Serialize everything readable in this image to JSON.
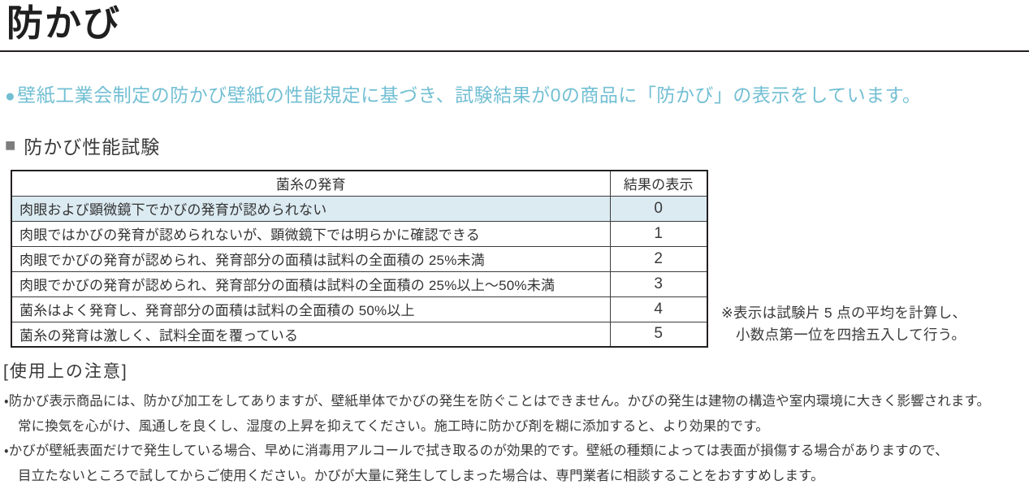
{
  "page": {
    "title": "防かび"
  },
  "intro": {
    "bullet": "●",
    "text": "壁紙工業会制定の防かび壁紙の性能規定に基づき、試験結果が0の商品に「防かび」の表示をしています。"
  },
  "section": {
    "marker": "■",
    "title": "防かび性能試験"
  },
  "table": {
    "headers": [
      "菌糸の発育",
      "結果の表示"
    ],
    "rows": [
      {
        "description": "肉眼および顕微鏡下でかびの発育が認められない",
        "result": "0"
      },
      {
        "description": "肉眼ではかびの発育が認められないが、顕微鏡下では明らかに確認できる",
        "result": "1"
      },
      {
        "description": "肉眼でかびの発育が認められ、発育部分の面積は試料の全面積の 25%未満",
        "result": "2"
      },
      {
        "description": "肉眼でかびの発育が認められ、発育部分の面積は試料の全面積の 25%以上～50%未満",
        "result": "3"
      },
      {
        "description": "菌糸はよく発育し、発育部分の面積は試料の全面積の 50%以上",
        "result": "4"
      },
      {
        "description": "菌糸の発育は激しく、試料全面を覆っている",
        "result": "5"
      }
    ]
  },
  "note": {
    "line1": "※表示は試験片 5 点の平均を計算し、",
    "line2": "小数点第一位を四捨五入して行う。"
  },
  "usage": {
    "heading": "[使用上の注意]",
    "items": [
      {
        "line1": "・防かび表示商品には、防かび加工をしてありますが、壁紙単体でかびの発生を防ぐことはできません。かびの発生は建物の構造や室内環境に大きく影響されます。",
        "line2": "常に換気を心がけ、風通しを良くし、湿度の上昇を抑えてください。施工時に防かび剤を糊に添加すると、より効果的です。"
      },
      {
        "line1": "・かびが壁紙表面だけで発生している場合、早めに消毒用アルコールで拭き取るのが効果的です。壁紙の種類によっては表面が損傷する場合がありますので、",
        "line2": "目立たないところで試してからご使用ください。かびが大量に発生してしまった場合は、専門業者に相談することをおすすめします。"
      }
    ]
  },
  "colors": {
    "accent_teal": "#72bfd3",
    "highlight_row": "#dcebf2",
    "heading_marker_gray": "#7d7d7d",
    "rule_black": "#231f20"
  }
}
